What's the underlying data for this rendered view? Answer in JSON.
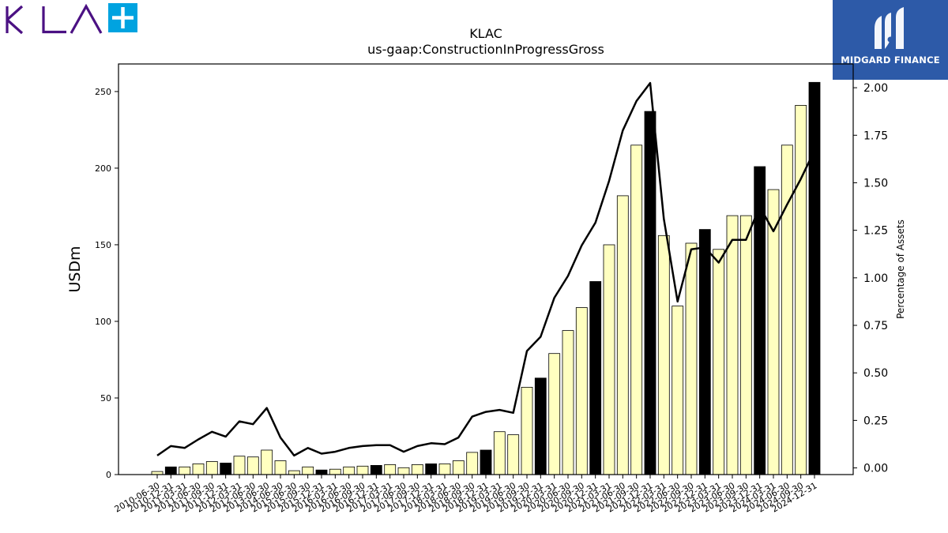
{
  "company_logo": {
    "text": "KLA",
    "accent_color": "#4b1183",
    "plus_color": "#00a3e0"
  },
  "brand": {
    "name": "MIDGARD FINANCE",
    "background_color": "#2d5aa8"
  },
  "chart_data": {
    "type": "bar",
    "title": "KLAC",
    "subtitle": "us-gaap:ConstructionInProgressGross",
    "ylabel": "USDm",
    "y2label": "Percentage of Assets",
    "ylim": [
      0,
      268
    ],
    "y2lim": [
      -0.035,
      2.125
    ],
    "yticks": [
      "0",
      "50",
      "100",
      "150",
      "200",
      "250"
    ],
    "y2ticks": [
      "0.00",
      "0.25",
      "0.50",
      "0.75",
      "1.00",
      "1.25",
      "1.50",
      "1.75",
      "2.00"
    ],
    "bar_colors": {
      "quarter": "#ffffc0",
      "fiscal_year_end": "#000000",
      "edge": "#000000"
    },
    "line_color": "#000000",
    "categories": [
      "2010-06-30",
      "2010-12-31",
      "2011-03-31",
      "2011-06-30",
      "2011-09-30",
      "2011-12-31",
      "2012-03-31",
      "2012-06-30",
      "2013-06-30",
      "2014-06-30",
      "2015-06-30",
      "2015-09-30",
      "2015-12-31",
      "2016-03-31",
      "2016-06-30",
      "2016-09-30",
      "2016-12-31",
      "2017-03-31",
      "2017-06-30",
      "2017-09-30",
      "2017-12-31",
      "2018-03-31",
      "2018-06-30",
      "2018-09-30",
      "2018-12-31",
      "2019-03-31",
      "2019-06-30",
      "2019-09-30",
      "2019-12-31",
      "2020-03-31",
      "2020-06-30",
      "2020-09-30",
      "2020-12-31",
      "2021-03-31",
      "2021-06-30",
      "2021-09-30",
      "2021-12-31",
      "2022-03-31",
      "2022-06-30",
      "2022-09-30",
      "2022-12-31",
      "2023-03-31",
      "2023-06-30",
      "2023-09-30",
      "2023-12-31",
      "2024-03-31",
      "2024-06-30",
      "2024-09-30",
      "2024-12-31"
    ],
    "series": [
      {
        "kind": "bar",
        "values": [
          2,
          5,
          5,
          7,
          8.5,
          7.5,
          12,
          11.5,
          16,
          9,
          2.5,
          5,
          3,
          3.5,
          5,
          5.5,
          6,
          6.5,
          4.5,
          6.5,
          7,
          7,
          9,
          14.5,
          16,
          28,
          26,
          57,
          63,
          79,
          94,
          109,
          126,
          150,
          182,
          215,
          237,
          156,
          110,
          151,
          160,
          147,
          169,
          169,
          201,
          186,
          215,
          241,
          256
        ],
        "fiscal_year_end": [
          false,
          true,
          false,
          false,
          false,
          true,
          false,
          false,
          false,
          false,
          false,
          false,
          true,
          false,
          false,
          false,
          true,
          false,
          false,
          false,
          true,
          false,
          false,
          false,
          true,
          false,
          false,
          false,
          true,
          false,
          false,
          false,
          true,
          false,
          false,
          false,
          true,
          false,
          false,
          false,
          true,
          false,
          false,
          false,
          true,
          false,
          false,
          false,
          true
        ]
      },
      {
        "kind": "line",
        "axis": "y2",
        "values": [
          0.065,
          0.115,
          0.105,
          0.15,
          0.19,
          0.165,
          0.245,
          0.23,
          0.315,
          0.16,
          0.065,
          0.105,
          0.075,
          0.085,
          0.105,
          0.115,
          0.12,
          0.12,
          0.085,
          0.115,
          0.13,
          0.125,
          0.16,
          0.27,
          0.295,
          0.305,
          0.29,
          0.615,
          0.69,
          0.895,
          1.01,
          1.17,
          1.29,
          1.51,
          1.775,
          1.93,
          2.025,
          1.31,
          0.875,
          1.15,
          1.16,
          1.08,
          1.2,
          1.2,
          1.375,
          1.245,
          1.385,
          1.52,
          1.67
        ]
      }
    ]
  }
}
